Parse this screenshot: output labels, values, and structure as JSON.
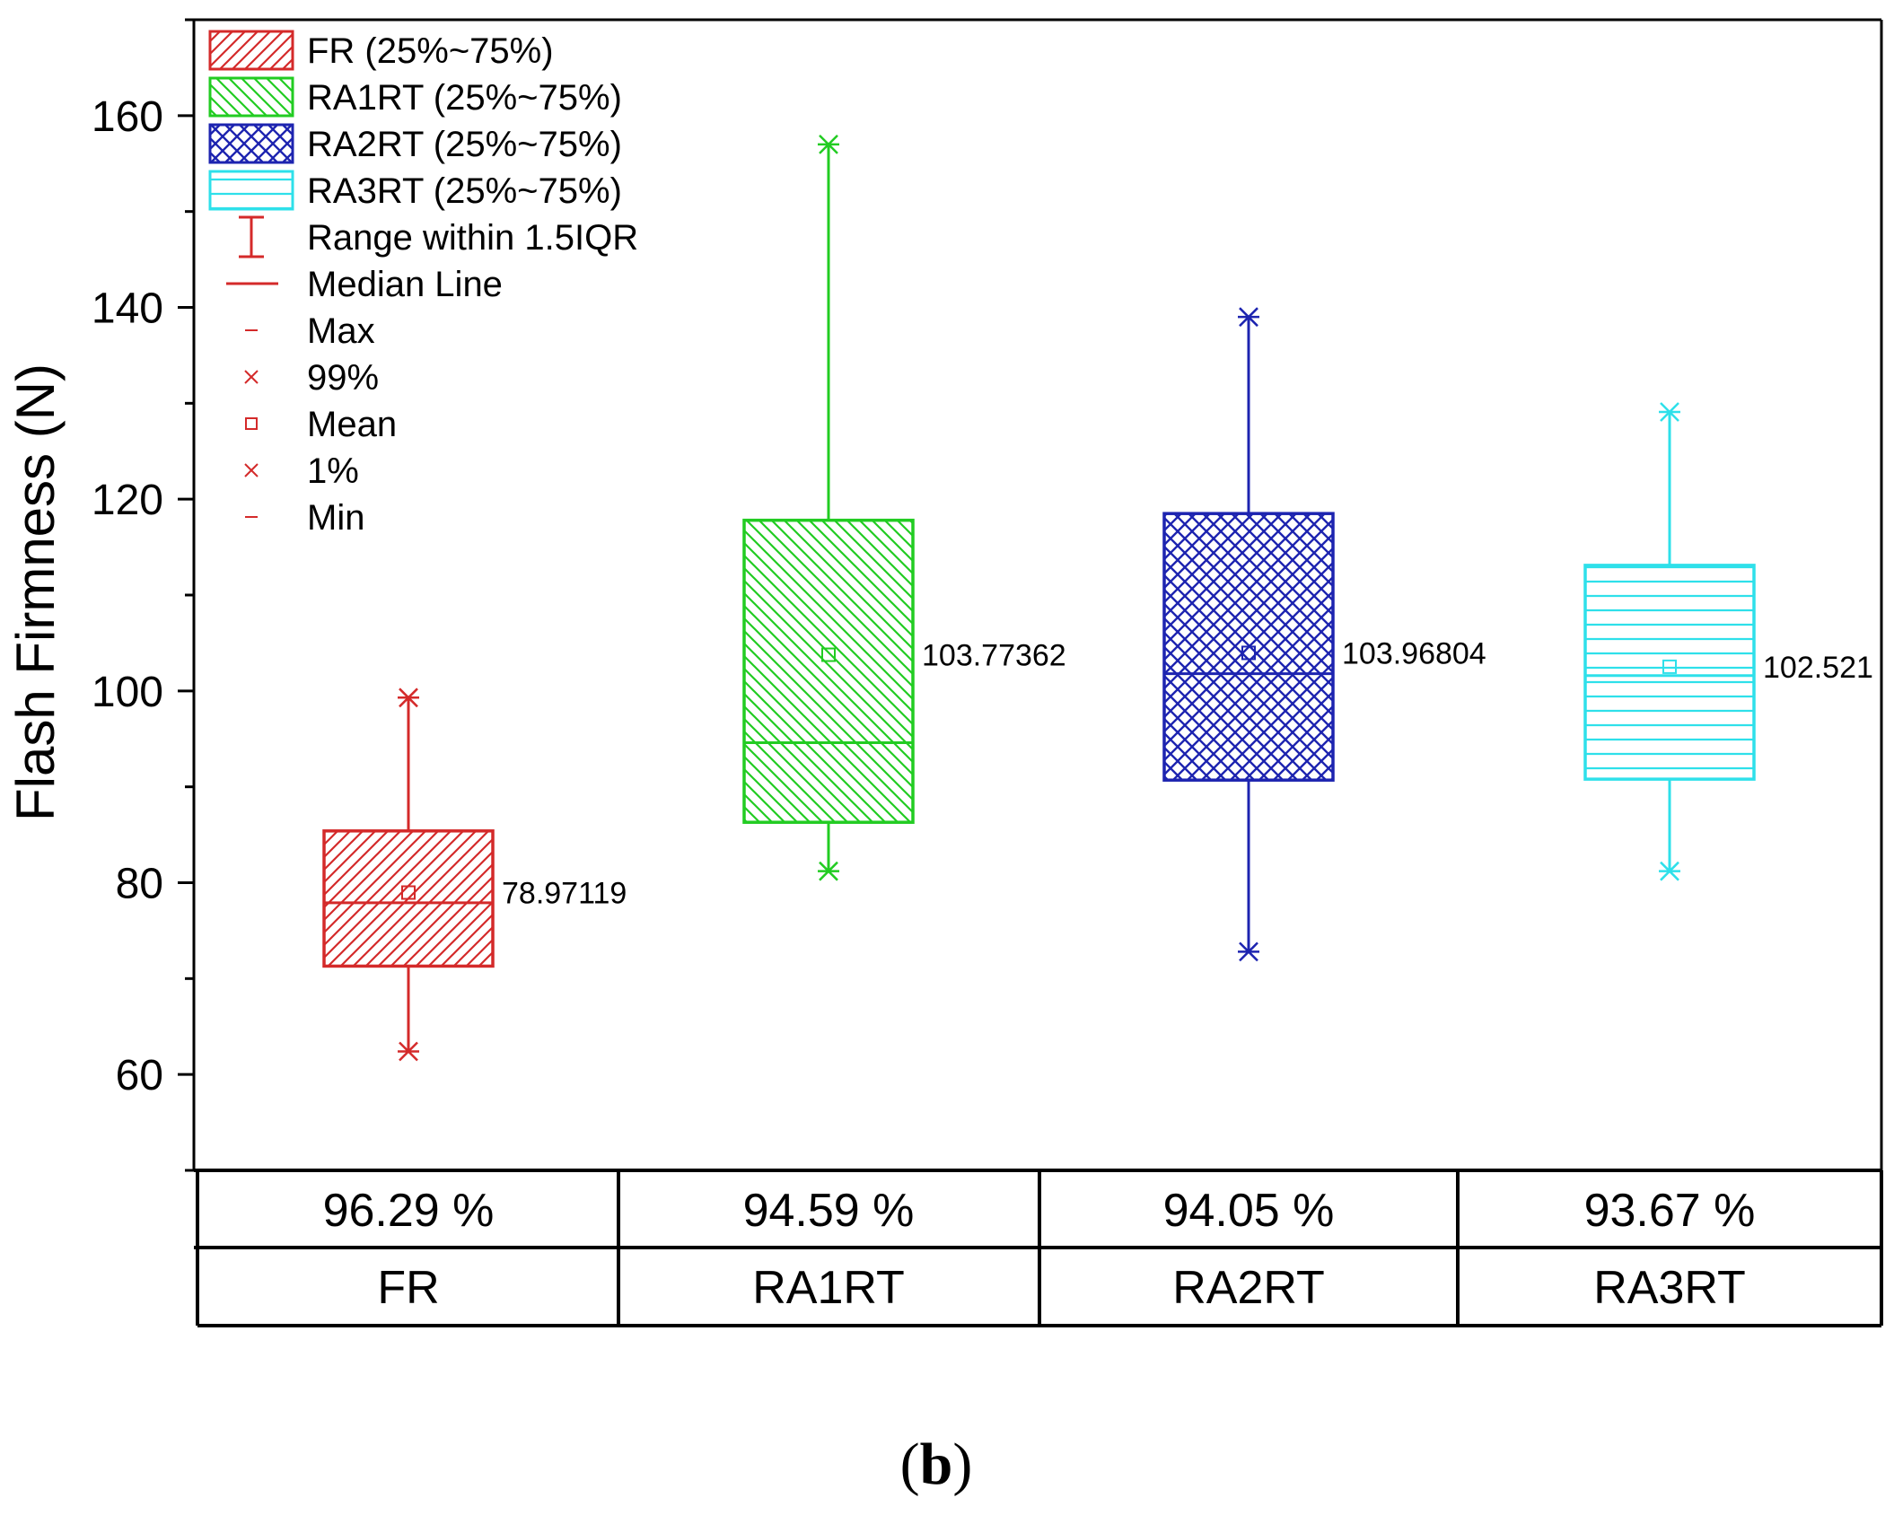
{
  "chart_data": {
    "type": "box",
    "ylabel": "Flash Firmness (N)",
    "xlabel": "",
    "ylim": [
      50,
      170
    ],
    "yticks": [
      60,
      80,
      100,
      120,
      140,
      160
    ],
    "categories": [
      "FR",
      "RA1RT",
      "RA2RT",
      "RA3RT"
    ],
    "boxes": [
      {
        "name": "FR",
        "color": "#d42a2a",
        "pattern": "hatch-fwd",
        "q1": 71.3,
        "q3": 85.4,
        "median": 77.9,
        "mean": 78.97119,
        "mean_label": "78.97119",
        "whisker_low": 62.4,
        "whisker_high": 99.3,
        "min": 62.4,
        "max": 99.3,
        "p1": 62.4,
        "p99": 99.3
      },
      {
        "name": "RA1RT",
        "color": "#22cc22",
        "pattern": "hatch-back",
        "q1": 86.3,
        "q3": 117.8,
        "median": 94.6,
        "mean": 103.77362,
        "mean_label": "103.77362",
        "whisker_low": 81.2,
        "whisker_high": 157.0,
        "min": 81.2,
        "max": 157.0,
        "p1": 81.2,
        "p99": 157.0
      },
      {
        "name": "RA2RT",
        "color": "#1d24b0",
        "pattern": "crosshatch",
        "q1": 90.7,
        "q3": 118.5,
        "median": 101.8,
        "mean": 103.96804,
        "mean_label": "103.96804",
        "whisker_low": 72.8,
        "whisker_high": 139.0,
        "min": 72.8,
        "max": 139.0,
        "p1": 72.8,
        "p99": 139.0
      },
      {
        "name": "RA3RT",
        "color": "#2ee0ea",
        "pattern": "horizontal",
        "q1": 90.8,
        "q3": 113.1,
        "median": 101.6,
        "mean": 102.521,
        "mean_label": "102.521",
        "whisker_low": 81.2,
        "whisker_high": 129.1,
        "min": 81.2,
        "max": 129.1,
        "p1": 81.2,
        "p99": 129.1
      }
    ],
    "legend": [
      {
        "label": "FR (25%~75%)",
        "kind": "box",
        "color": "#d42a2a",
        "pattern": "hatch-fwd"
      },
      {
        "label": "RA1RT (25%~75%)",
        "kind": "box",
        "color": "#22cc22",
        "pattern": "hatch-back"
      },
      {
        "label": "RA2RT (25%~75%)",
        "kind": "box",
        "color": "#1d24b0",
        "pattern": "crosshatch"
      },
      {
        "label": "RA3RT (25%~75%)",
        "kind": "box",
        "color": "#2ee0ea",
        "pattern": "horizontal"
      },
      {
        "label": "Range within 1.5IQR",
        "kind": "whisker",
        "color": "#d42a2a"
      },
      {
        "label": "Median Line",
        "kind": "line",
        "color": "#d42a2a"
      },
      {
        "label": "Max",
        "kind": "dash",
        "color": "#d42a2a"
      },
      {
        "label": "99%",
        "kind": "x",
        "color": "#d42a2a"
      },
      {
        "label": "Mean",
        "kind": "square",
        "color": "#d42a2a"
      },
      {
        "label": "1%",
        "kind": "x",
        "color": "#d42a2a"
      },
      {
        "label": "Min",
        "kind": "dash",
        "color": "#d42a2a"
      }
    ],
    "legend_position": "top-left"
  },
  "table": {
    "percent_row": [
      "96.29 %",
      "94.59 %",
      "94.05 %",
      "93.67 %"
    ],
    "name_row": [
      "FR",
      "RA1RT",
      "RA2RT",
      "RA3RT"
    ]
  },
  "caption": {
    "open": "(",
    "letter": "b",
    "close": ")"
  }
}
